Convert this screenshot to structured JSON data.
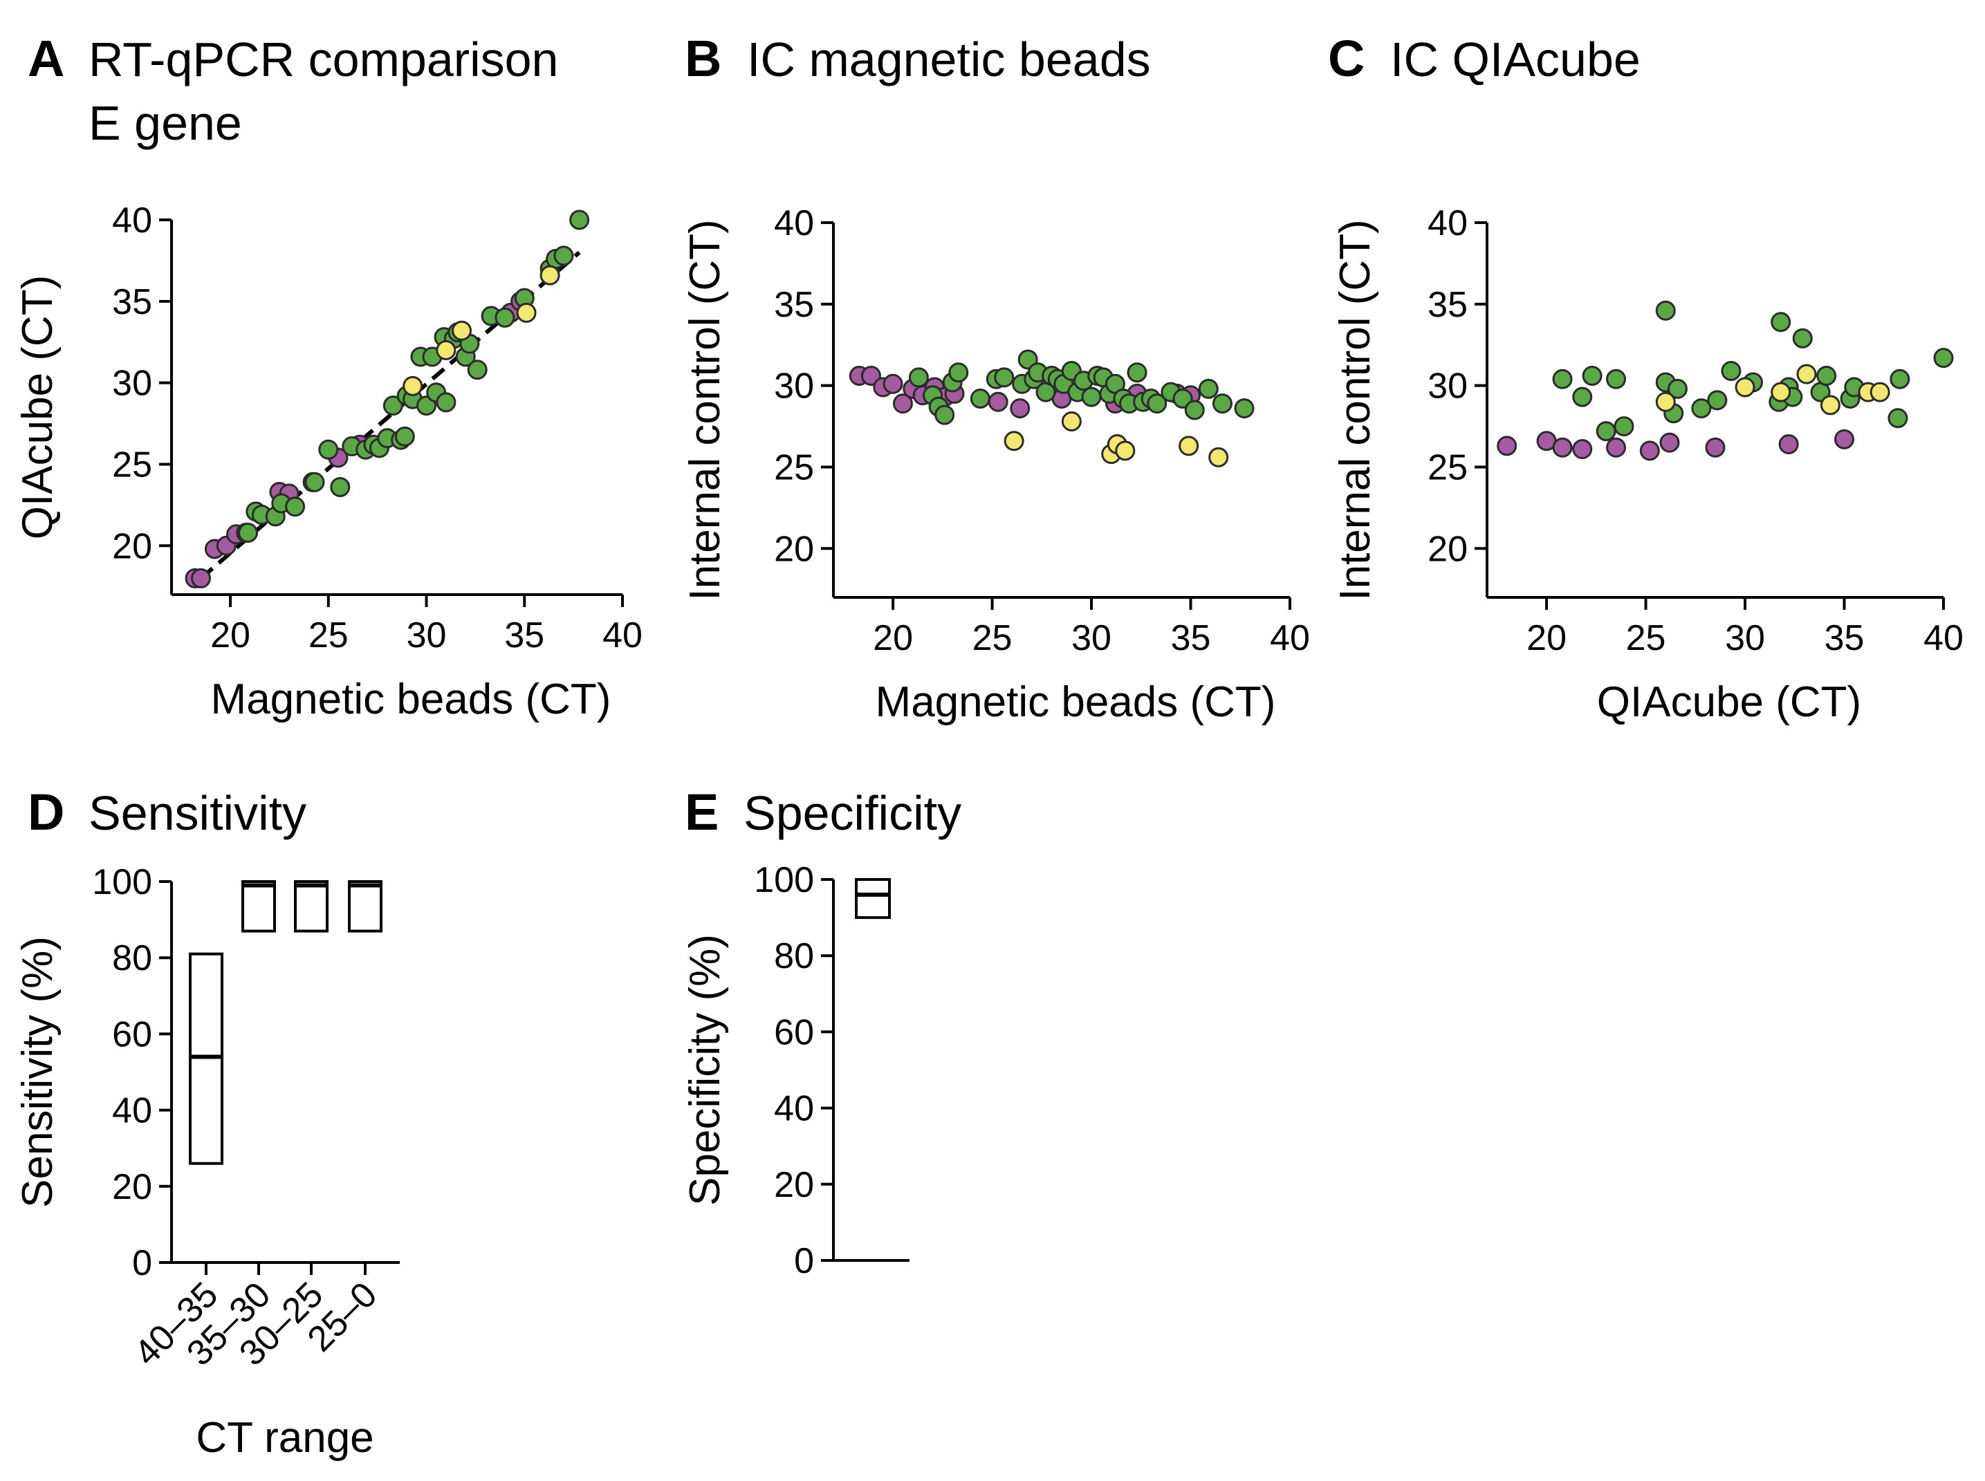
{
  "colors": {
    "green": "#5aa845",
    "purple": "#a45ba0",
    "yellow": "#f2e870"
  },
  "chart_data": [
    {
      "id": "A",
      "type": "scatter",
      "letter": "A",
      "title": "RT-qPCR comparison",
      "title2": "E gene",
      "xlabel": "Magnetic beads (CT)",
      "ylabel": "QIAcube (CT)",
      "xlim": [
        17,
        40
      ],
      "ylim": [
        17,
        40
      ],
      "xticks": [
        20,
        25,
        30,
        35,
        40
      ],
      "yticks": [
        20,
        25,
        30,
        35,
        40
      ],
      "fit_line": [
        [
          18.5,
          18
        ],
        [
          37.8,
          38
        ]
      ],
      "series": [
        {
          "name": "purple",
          "color": "purple",
          "x": [
            18.2,
            18.5,
            19.2,
            19.8,
            20.3,
            20.8,
            21.6,
            22.5,
            23.0,
            24.2,
            25.5,
            26.6,
            34.3,
            34.8
          ],
          "y": [
            18.0,
            18.0,
            19.8,
            20.0,
            20.7,
            20.8,
            21.9,
            23.3,
            23.2,
            23.9,
            25.4,
            26.2,
            34.3,
            35.0
          ]
        },
        {
          "name": "green",
          "color": "green",
          "x": [
            20.9,
            21.3,
            21.6,
            22.3,
            22.6,
            23.3,
            24.3,
            25.0,
            25.6,
            26.2,
            26.9,
            27.3,
            27.6,
            28.0,
            28.3,
            28.7,
            28.9,
            29.0,
            29.3,
            29.7,
            30.0,
            30.3,
            30.5,
            30.9,
            31.0,
            31.4,
            31.6,
            32.0,
            32.2,
            32.6,
            33.3,
            34.0,
            35.0,
            36.3,
            36.6,
            37.0,
            37.8
          ],
          "y": [
            20.8,
            22.1,
            21.9,
            21.8,
            22.6,
            22.4,
            23.9,
            25.9,
            23.6,
            26.1,
            25.9,
            26.2,
            26.0,
            26.6,
            28.6,
            26.5,
            26.7,
            29.2,
            29.0,
            31.6,
            28.6,
            31.6,
            29.4,
            32.8,
            28.8,
            32.7,
            33.1,
            31.6,
            32.4,
            30.8,
            34.1,
            34.0,
            35.2,
            37.0,
            37.6,
            37.8,
            40.0
          ]
        },
        {
          "name": "yellow",
          "color": "yellow",
          "x": [
            29.3,
            31.0,
            31.8,
            35.1,
            36.3
          ],
          "y": [
            29.8,
            32.0,
            33.2,
            34.3,
            36.6
          ]
        }
      ]
    },
    {
      "id": "B",
      "type": "scatter",
      "letter": "B",
      "title": "IC magnetic beads",
      "xlabel": "Magnetic beads (CT)",
      "ylabel": "Internal control (CT)",
      "xlim": [
        17,
        40
      ],
      "ylim": [
        17,
        40
      ],
      "xticks": [
        20,
        25,
        30,
        35,
        40
      ],
      "yticks": [
        20,
        25,
        30,
        35,
        40
      ],
      "series": [
        {
          "name": "purple",
          "color": "purple",
          "x": [
            18.3,
            18.9,
            19.5,
            20.0,
            20.5,
            21.0,
            21.5,
            22.1,
            22.6,
            23.1,
            25.3,
            26.4,
            28.5,
            31.2,
            32.3,
            34.3,
            35.0
          ],
          "y": [
            30.6,
            30.6,
            29.9,
            30.1,
            28.9,
            29.8,
            29.4,
            29.9,
            29.3,
            29.5,
            29.0,
            28.6,
            29.2,
            28.9,
            29.5,
            29.5,
            29.4
          ]
        },
        {
          "name": "green",
          "color": "green",
          "x": [
            21.3,
            22.0,
            22.3,
            22.6,
            23.0,
            23.3,
            24.4,
            25.2,
            25.6,
            26.5,
            26.8,
            27.1,
            27.3,
            27.7,
            28.0,
            28.3,
            28.6,
            29.0,
            29.3,
            29.6,
            30.0,
            30.3,
            30.6,
            30.9,
            31.2,
            31.6,
            31.9,
            32.3,
            32.6,
            33.0,
            33.3,
            34.0,
            34.6,
            35.2,
            35.9,
            36.6,
            37.7
          ],
          "y": [
            30.5,
            29.4,
            28.7,
            28.2,
            30.2,
            30.8,
            29.2,
            30.4,
            30.5,
            30.1,
            31.6,
            30.4,
            30.8,
            29.6,
            30.6,
            30.4,
            30.1,
            30.9,
            29.6,
            30.3,
            29.3,
            30.6,
            30.5,
            29.5,
            30.1,
            29.2,
            28.9,
            30.8,
            29.0,
            29.2,
            28.9,
            29.6,
            29.2,
            28.5,
            29.8,
            28.9,
            28.6
          ]
        },
        {
          "name": "yellow",
          "color": "yellow",
          "x": [
            26.1,
            29.0,
            31.0,
            31.3,
            31.7,
            34.9,
            36.4
          ],
          "y": [
            26.6,
            27.8,
            25.8,
            26.4,
            26.0,
            26.3,
            25.6
          ]
        }
      ]
    },
    {
      "id": "C",
      "type": "scatter",
      "letter": "C",
      "title": "IC QIAcube",
      "xlabel": "QIAcube (CT)",
      "ylabel": "Internal control (CT)",
      "xlim": [
        17,
        40
      ],
      "ylim": [
        17,
        40
      ],
      "xticks": [
        20,
        25,
        30,
        35,
        40
      ],
      "yticks": [
        20,
        25,
        30,
        35,
        40
      ],
      "series": [
        {
          "name": "purple",
          "color": "purple",
          "x": [
            18.0,
            20.0,
            20.8,
            21.8,
            23.5,
            25.2,
            26.2,
            28.5,
            32.2,
            35.0
          ],
          "y": [
            26.3,
            26.6,
            26.2,
            26.1,
            26.2,
            26.0,
            26.5,
            26.2,
            26.4,
            26.7
          ]
        },
        {
          "name": "green",
          "color": "green",
          "x": [
            20.8,
            21.8,
            22.3,
            23.0,
            23.5,
            23.9,
            26.0,
            26.0,
            26.4,
            26.6,
            27.8,
            28.6,
            29.3,
            30.4,
            31.7,
            31.8,
            32.2,
            32.4,
            32.9,
            33.8,
            34.1,
            35.3,
            35.5,
            37.7,
            37.8,
            40.0
          ],
          "y": [
            30.4,
            29.3,
            30.6,
            27.2,
            30.4,
            27.5,
            34.6,
            30.2,
            28.3,
            29.8,
            28.6,
            29.1,
            30.9,
            30.2,
            29.0,
            33.9,
            29.9,
            29.3,
            32.9,
            29.6,
            30.6,
            29.2,
            29.9,
            28.0,
            30.4,
            31.7
          ]
        },
        {
          "name": "yellow",
          "color": "yellow",
          "x": [
            26.0,
            30.0,
            31.8,
            33.1,
            34.3,
            36.2,
            36.8
          ],
          "y": [
            29.0,
            29.9,
            29.6,
            30.7,
            28.8,
            29.6,
            29.6
          ]
        }
      ]
    },
    {
      "id": "D",
      "type": "box",
      "letter": "D",
      "title": "Sensitivity",
      "xlabel": "CT range",
      "ylabel": "Sensitivity (%)",
      "ylim": [
        0,
        100
      ],
      "yticks": [
        0,
        20,
        40,
        60,
        80,
        100
      ],
      "categories": [
        "40–35",
        "35–30",
        "30–25",
        "25–0"
      ],
      "boxes": [
        {
          "low": 26,
          "high": 81,
          "median": 54
        },
        {
          "low": 87,
          "high": 100,
          "median": 99
        },
        {
          "low": 87,
          "high": 100,
          "median": 99
        },
        {
          "low": 87,
          "high": 100,
          "median": 99
        }
      ]
    },
    {
      "id": "E",
      "type": "box",
      "letter": "E",
      "title": "Specificity",
      "xlabel": "",
      "ylabel": "Specificity (%)",
      "ylim": [
        0,
        100
      ],
      "yticks": [
        0,
        20,
        40,
        60,
        80,
        100
      ],
      "categories": [
        ""
      ],
      "boxes": [
        {
          "low": 90,
          "high": 100,
          "median": 96
        }
      ]
    }
  ]
}
